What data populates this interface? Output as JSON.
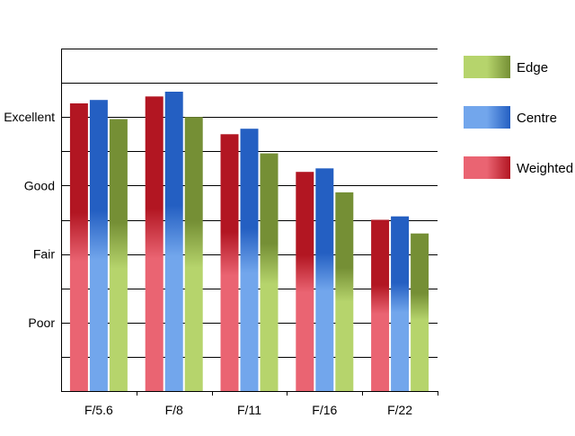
{
  "chart_data": {
    "type": "bar",
    "categories": [
      "F/5.6",
      "F/8",
      "F/11",
      "F/16",
      "F/22"
    ],
    "series": [
      {
        "name": "Weighted",
        "values": [
          4.2,
          4.3,
          3.75,
          3.2,
          2.5
        ]
      },
      {
        "name": "Centre",
        "values": [
          4.25,
          4.37,
          3.83,
          3.25,
          2.55
        ]
      },
      {
        "name": "Edge",
        "values": [
          3.97,
          4.0,
          3.47,
          2.9,
          2.3
        ]
      }
    ],
    "ylim": [
      0,
      5
    ],
    "y_tick_labels": [
      {
        "value": 1,
        "label": "Poor"
      },
      {
        "value": 2,
        "label": "Fair"
      },
      {
        "value": 3,
        "label": "Good"
      },
      {
        "value": 4,
        "label": "Excellent"
      }
    ],
    "legend_order": [
      "Edge",
      "Centre",
      "Weighted"
    ],
    "legend_position": "right",
    "grid": true,
    "colors": {
      "Weighted": {
        "light": "#ea6472",
        "dark": "#b21622"
      },
      "Centre": {
        "light": "#72a6ec",
        "dark": "#245fc2"
      },
      "Edge": {
        "light": "#b6d46c",
        "dark": "#758f35"
      }
    }
  }
}
